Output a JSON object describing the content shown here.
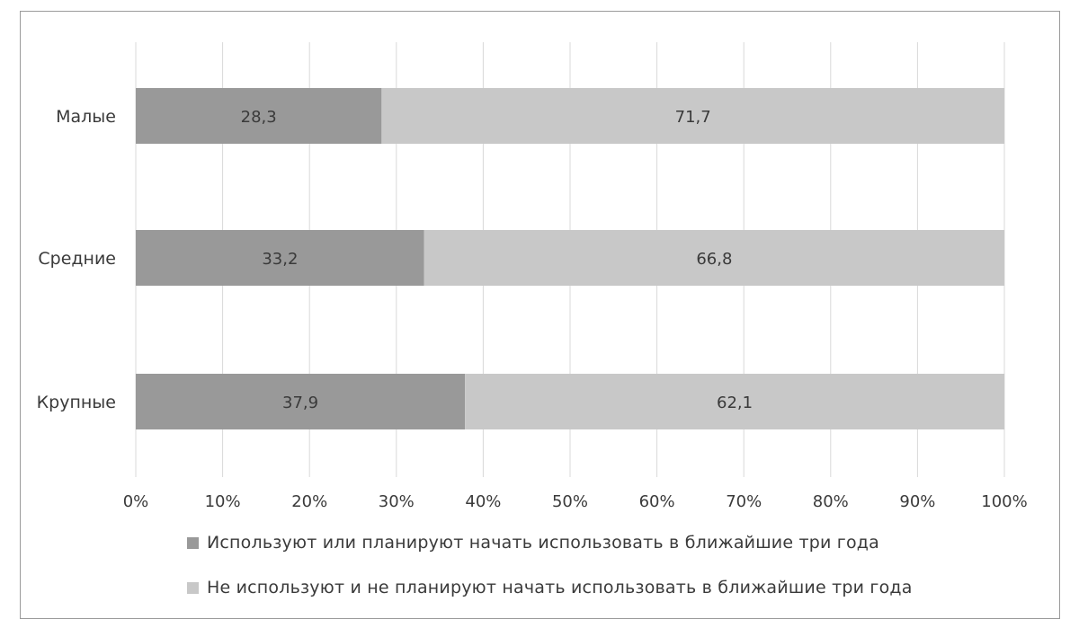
{
  "chart_data": {
    "type": "bar",
    "orientation": "horizontal",
    "stacked": true,
    "categories": [
      "Малые",
      "Средние",
      "Крупные"
    ],
    "series": [
      {
        "name": "Используют или планируют начать использовать в ближайшие три года",
        "values": [
          28.3,
          33.2,
          37.9
        ],
        "labels": [
          "28,3",
          "33,2",
          "37,9"
        ],
        "color": "#999999"
      },
      {
        "name": "Не используют и не планируют начать использовать в ближайшие три года",
        "values": [
          71.7,
          66.8,
          62.1
        ],
        "labels": [
          "71,7",
          "66,8",
          "62,1"
        ],
        "color": "#c8c8c8"
      }
    ],
    "xlim": [
      0,
      100
    ],
    "xticks": [
      "0%",
      "10%",
      "20%",
      "30%",
      "40%",
      "50%",
      "60%",
      "70%",
      "80%",
      "90%",
      "100%"
    ],
    "grid": "vertical",
    "legend_position": "bottom",
    "title": "",
    "xlabel": "",
    "ylabel": ""
  }
}
